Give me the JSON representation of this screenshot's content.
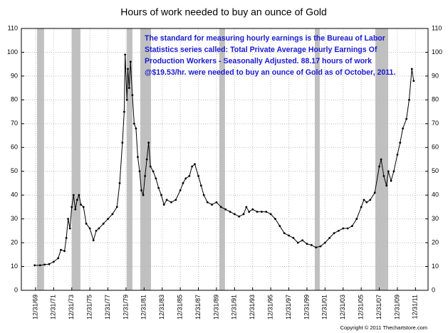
{
  "chart_data": {
    "type": "line",
    "title": "Hours of work needed to buy an ounce of Gold",
    "annotation": [
      "The standard for measuring hourly earnings is the Bureau of Labor",
      "Statistics series called:  Total Private Average Hourly Earnings Of",
      "Production Workers - Seasonally Adjusted.  88.17 hours of work",
      "@$19.53/hr. were needed to buy an ounce of Gold as of October, 2011."
    ],
    "copyright": "Copyright © 2011 Thechartstore.com",
    "color": "#000000",
    "shade_color": "#c0c0c0",
    "grid": true,
    "xlim": [
      1968.43,
      2013.39
    ],
    "ylim": [
      0,
      110
    ],
    "y2lim": [
      0,
      110
    ],
    "xticks": [
      {
        "value": 1970,
        "label": "12/31/69"
      },
      {
        "value": 1972,
        "label": "12/31/71"
      },
      {
        "value": 1974,
        "label": "12/31/73"
      },
      {
        "value": 1976,
        "label": "12/31/75"
      },
      {
        "value": 1978,
        "label": "12/31/77"
      },
      {
        "value": 1980,
        "label": "12/31/79"
      },
      {
        "value": 1982,
        "label": "12/31/81"
      },
      {
        "value": 1984,
        "label": "12/31/83"
      },
      {
        "value": 1986,
        "label": "12/31/85"
      },
      {
        "value": 1988,
        "label": "12/31/87"
      },
      {
        "value": 1990,
        "label": "12/31/89"
      },
      {
        "value": 1992,
        "label": "12/31/91"
      },
      {
        "value": 1994,
        "label": "12/31/93"
      },
      {
        "value": 1996,
        "label": "12/31/95"
      },
      {
        "value": 1998,
        "label": "12/31/97"
      },
      {
        "value": 2000,
        "label": "12/31/99"
      },
      {
        "value": 2002,
        "label": "12/31/01"
      },
      {
        "value": 2004,
        "label": "12/31/03"
      },
      {
        "value": 2006,
        "label": "12/31/05"
      },
      {
        "value": 2008,
        "label": "12/31/07"
      },
      {
        "value": 2010,
        "label": "12/31/09"
      },
      {
        "value": 2012,
        "label": "12/31/11"
      }
    ],
    "yticks": [
      0,
      10,
      20,
      30,
      40,
      50,
      60,
      70,
      80,
      90,
      100,
      110
    ],
    "y2ticks": [
      0,
      10,
      20,
      30,
      40,
      50,
      60,
      70,
      80,
      90,
      100,
      110
    ],
    "shaded_periods": [
      [
        1970.16,
        1970.94
      ],
      [
        1974.0,
        1974.96
      ],
      [
        1980.08,
        1980.71
      ],
      [
        1981.57,
        1982.76
      ],
      [
        1990.31,
        1990.94
      ],
      [
        2000.87,
        2001.42
      ],
      [
        2007.56,
        2008.98
      ]
    ],
    "x": [
      1969.9,
      1970.5,
      1971,
      1971.5,
      1972,
      1972.5,
      1972.8,
      1973.2,
      1973.4,
      1973.6,
      1973.8,
      1974.0,
      1974.2,
      1974.4,
      1974.6,
      1974.8,
      1975.0,
      1975.3,
      1975.6,
      1976.0,
      1976.4,
      1976.7,
      1977.0,
      1977.5,
      1978.0,
      1978.5,
      1979.0,
      1979.3,
      1979.6,
      1979.8,
      1979.9,
      1980.1,
      1980.2,
      1980.35,
      1980.5,
      1980.7,
      1980.9,
      1981.1,
      1981.3,
      1981.5,
      1981.7,
      1981.9,
      1982.1,
      1982.3,
      1982.5,
      1982.7,
      1983.0,
      1983.3,
      1983.6,
      1983.9,
      1984.2,
      1984.5,
      1985.0,
      1985.5,
      1986.0,
      1986.3,
      1986.6,
      1987.0,
      1987.3,
      1987.6,
      1988.0,
      1988.3,
      1988.6,
      1989.0,
      1989.5,
      1990.0,
      1990.5,
      1991.0,
      1991.5,
      1992.0,
      1992.5,
      1993.0,
      1993.3,
      1993.6,
      1994.0,
      1994.5,
      1995.0,
      1995.5,
      1996.0,
      1996.5,
      1997.0,
      1997.5,
      1998.0,
      1998.5,
      1999.0,
      1999.5,
      2000.0,
      2000.5,
      2001.0,
      2001.5,
      2002.0,
      2002.5,
      2003.0,
      2003.5,
      2004.0,
      2004.5,
      2005.0,
      2005.5,
      2006.0,
      2006.3,
      2006.6,
      2007.0,
      2007.5,
      2008.0,
      2008.2,
      2008.5,
      2008.8,
      2009.0,
      2009.3,
      2009.6,
      2010.0,
      2010.3,
      2010.6,
      2011.0,
      2011.3,
      2011.6,
      2011.8
    ],
    "values": [
      10.5,
      10.5,
      10.8,
      11,
      12,
      13.5,
      17,
      16.5,
      22,
      30,
      26,
      35,
      40,
      34,
      38,
      40,
      36,
      35,
      28,
      26,
      21,
      25,
      26,
      28,
      30,
      32,
      35,
      45,
      62,
      75,
      99,
      80,
      93,
      85,
      96,
      82,
      70,
      68,
      56,
      50,
      42,
      40,
      48,
      55,
      62,
      52,
      50,
      47,
      43,
      40,
      36,
      38,
      37,
      38,
      42,
      45,
      47,
      48,
      52,
      53,
      48,
      44,
      40,
      37,
      36,
      37,
      35,
      34,
      33,
      32,
      31,
      32,
      35,
      33,
      34,
      33,
      33,
      33,
      32,
      30,
      27,
      24,
      23,
      22,
      20,
      21,
      19.5,
      19,
      18,
      18.5,
      20,
      22,
      24,
      25,
      26,
      26,
      27,
      30,
      35,
      38,
      37,
      38,
      41,
      52,
      55,
      48,
      44,
      50,
      46,
      50,
      57,
      62,
      68,
      72,
      80,
      93,
      88
    ]
  }
}
